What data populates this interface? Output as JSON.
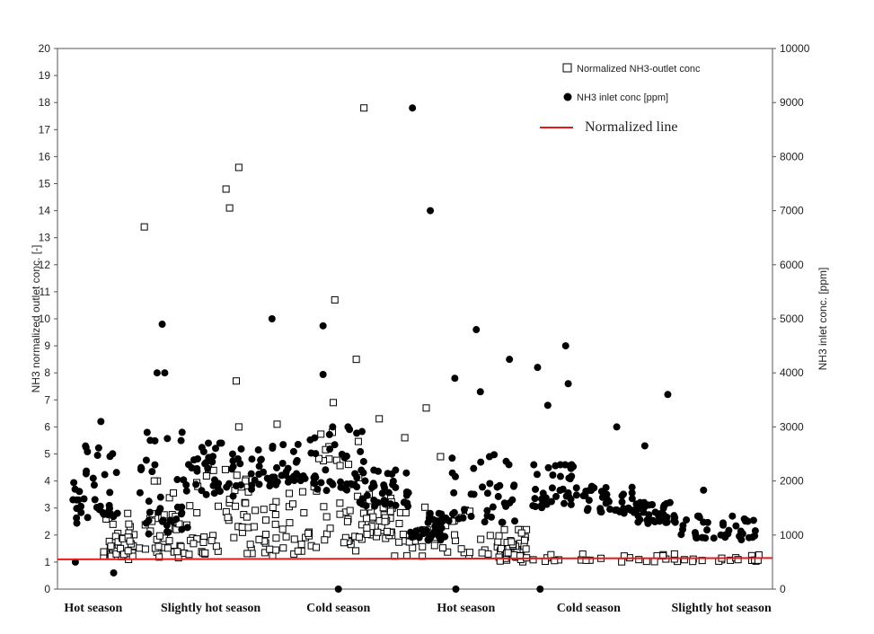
{
  "chart_data": {
    "type": "scatter",
    "title": "",
    "ylabel": "NH3 normalized outlet conc. [-]",
    "y2label": "NH3 inlet conc. [ppm]",
    "ylim": [
      0,
      20
    ],
    "y2lim": [
      0,
      10000
    ],
    "yticks": [
      "0",
      "1",
      "2",
      "3",
      "4",
      "5",
      "6",
      "7",
      "8",
      "9",
      "10",
      "11",
      "12",
      "13",
      "14",
      "15",
      "16",
      "17",
      "18",
      "19",
      "20"
    ],
    "y2ticks": [
      "0",
      "1000",
      "2000",
      "3000",
      "4000",
      "5000",
      "6000",
      "7000",
      "8000",
      "9000",
      "10000"
    ],
    "grid": false,
    "legend_position": "top-right",
    "legend": {
      "outlet": "Normalized NH3-outlet conc",
      "inlet": "NH3 inlet conc [ppm]",
      "line": "Normalized line"
    },
    "season_labels": [
      {
        "label": "Hot season",
        "x": 0.7
      },
      {
        "label": "Slightly hot  season",
        "x": 3.0
      },
      {
        "label": "Cold season",
        "x": 5.5
      },
      {
        "label": "Hot season",
        "x": 8.0
      },
      {
        "label": "Cold season",
        "x": 10.4
      },
      {
        "label": "Slightly hot season",
        "x": 13.0
      }
    ],
    "xlim": [
      0,
      14
    ],
    "normalized_line": {
      "x": [
        0,
        14
      ],
      "y": [
        1.1,
        1.15
      ],
      "color": "#e41a1c"
    },
    "series": [
      {
        "name": "Normalized NH3-outlet conc",
        "axis": "left",
        "marker": "open-square",
        "outliers": [
          {
            "x": 1.7,
            "y": 13.4
          },
          {
            "x": 3.3,
            "y": 14.8
          },
          {
            "x": 3.37,
            "y": 14.1
          },
          {
            "x": 3.55,
            "y": 15.6
          },
          {
            "x": 3.5,
            "y": 7.7
          },
          {
            "x": 3.55,
            "y": 6.0
          },
          {
            "x": 4.3,
            "y": 6.1
          },
          {
            "x": 5.43,
            "y": 10.7
          },
          {
            "x": 5.4,
            "y": 6.9
          },
          {
            "x": 5.85,
            "y": 8.5
          },
          {
            "x": 6.0,
            "y": 17.8
          },
          {
            "x": 6.3,
            "y": 6.3
          },
          {
            "x": 7.22,
            "y": 6.7
          },
          {
            "x": 6.8,
            "y": 5.6
          },
          {
            "x": 7.5,
            "y": 4.9
          }
        ],
        "segments": [
          {
            "x": [
              0.9,
              1.5
            ],
            "y": [
              1.0,
              2.8
            ]
          },
          {
            "x": [
              1.6,
              2.6
            ],
            "y": [
              1.1,
              4.0
            ]
          },
          {
            "x": [
              2.6,
              3.7
            ],
            "y": [
              1.2,
              5.0
            ]
          },
          {
            "x": [
              3.7,
              4.9
            ],
            "y": [
              1.2,
              3.6
            ]
          },
          {
            "x": [
              4.9,
              5.9
            ],
            "y": [
              1.3,
              5.8
            ]
          },
          {
            "x": [
              5.9,
              6.6
            ],
            "y": [
              1.8,
              3.5
            ]
          },
          {
            "x": [
              6.6,
              8.6
            ],
            "y": [
              1.2,
              3.3
            ]
          },
          {
            "x": [
              8.6,
              9.2
            ],
            "y": [
              1.0,
              2.2
            ]
          },
          {
            "x": [
              9.3,
              14.0
            ],
            "y": [
              1.0,
              1.3
            ]
          }
        ]
      },
      {
        "name": "NH3 inlet conc [ppm]",
        "axis": "right",
        "marker": "filled-circle",
        "outliers": [
          {
            "x": 0.35,
            "y": 500
          },
          {
            "x": 0.85,
            "y": 3100
          },
          {
            "x": 2.05,
            "y": 4900
          },
          {
            "x": 1.95,
            "y": 4000
          },
          {
            "x": 2.1,
            "y": 4000
          },
          {
            "x": 4.2,
            "y": 5000
          },
          {
            "x": 5.2,
            "y": 4870
          },
          {
            "x": 5.2,
            "y": 3970
          },
          {
            "x": 6.95,
            "y": 8900
          },
          {
            "x": 7.3,
            "y": 7000
          },
          {
            "x": 7.78,
            "y": 3900
          },
          {
            "x": 8.2,
            "y": 4800
          },
          {
            "x": 8.28,
            "y": 3650
          },
          {
            "x": 8.85,
            "y": 4250
          },
          {
            "x": 9.4,
            "y": 4100
          },
          {
            "x": 9.6,
            "y": 3400
          },
          {
            "x": 9.95,
            "y": 4500
          },
          {
            "x": 10.0,
            "y": 3800
          },
          {
            "x": 10.95,
            "y": 3000
          },
          {
            "x": 11.5,
            "y": 2650
          },
          {
            "x": 11.95,
            "y": 3600
          },
          {
            "x": 12.65,
            "y": 1830
          },
          {
            "x": 5.5,
            "y": 0
          },
          {
            "x": 7.8,
            "y": 0
          },
          {
            "x": 9.45,
            "y": 0
          },
          {
            "x": 1.1,
            "y": 300
          }
        ],
        "segments": [
          {
            "x": [
              0.3,
              1.2
            ],
            "y": [
              1200,
              2700
            ]
          },
          {
            "x": [
              1.6,
              2.6
            ],
            "y": [
              1000,
              2900
            ]
          },
          {
            "x": [
              2.6,
              3.8
            ],
            "y": [
              1700,
              2700
            ]
          },
          {
            "x": [
              3.8,
              4.9
            ],
            "y": [
              1900,
              2700
            ]
          },
          {
            "x": [
              4.9,
              6.0
            ],
            "y": [
              1800,
              3000
            ]
          },
          {
            "x": [
              5.9,
              6.9
            ],
            "y": [
              1500,
              2200
            ]
          },
          {
            "x": [
              6.9,
              7.6
            ],
            "y": [
              900,
              1400
            ]
          },
          {
            "x": [
              7.6,
              9.1
            ],
            "y": [
              1200,
              2600
            ]
          },
          {
            "x": [
              9.3,
              10.3
            ],
            "y": [
              1500,
              2300
            ]
          },
          {
            "x": [
              10.3,
              11.3
            ],
            "y": [
              1400,
              1900
            ]
          },
          {
            "x": [
              11.3,
              12.1
            ],
            "y": [
              1200,
              1600
            ]
          },
          {
            "x": [
              12.1,
              13.7
            ],
            "y": [
              900,
              1350
            ]
          }
        ]
      }
    ]
  }
}
